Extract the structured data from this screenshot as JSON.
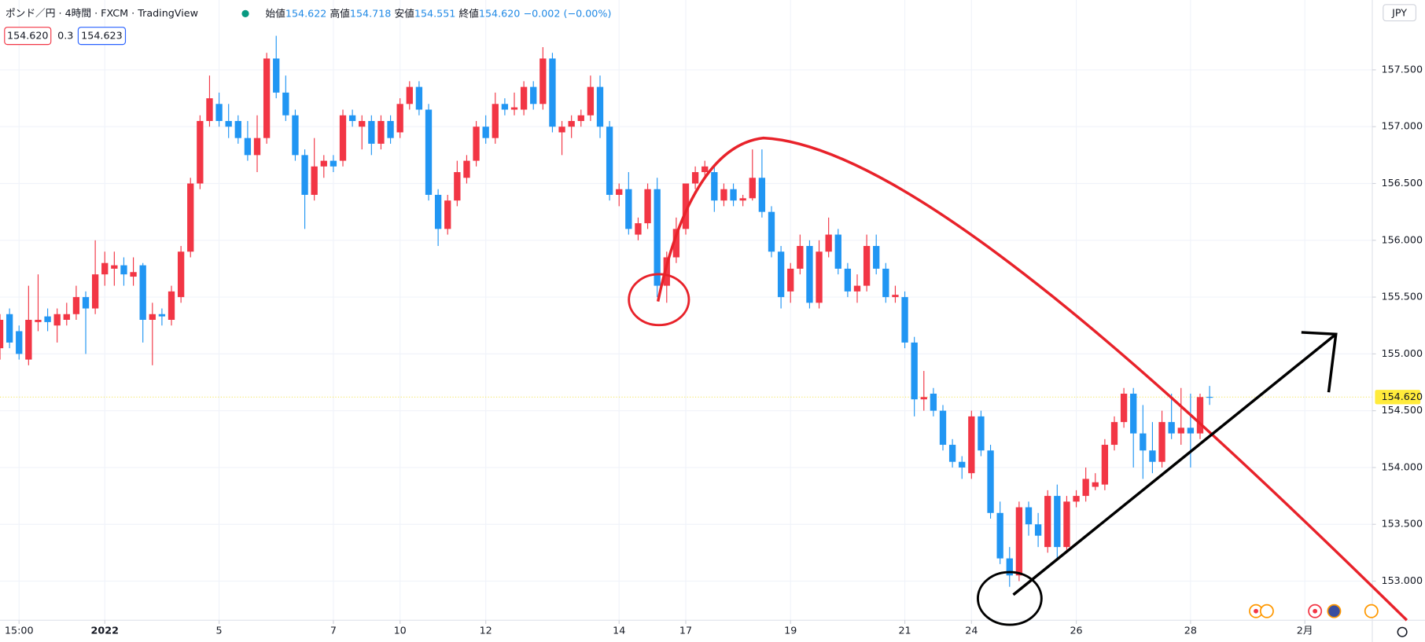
{
  "header": {
    "title": "ポンド／円 · 4時間 · FXCM · TradingView",
    "open_label": "始値",
    "open": "154.622",
    "high_label": "高値",
    "high": "154.718",
    "low_label": "安値",
    "low": "154.551",
    "close_label": "終値",
    "close": "154.620",
    "change": "−0.002 (−0.00%)",
    "sell": "154.620",
    "spread": "0.3",
    "buy": "154.623",
    "currency": "JPY"
  },
  "chart_data": {
    "type": "candlestick",
    "up_color": "#f23645",
    "down_color": "#2196f3",
    "grid": true,
    "xlim": [
      0,
      144.08
    ],
    "ylim": [
      152.656,
      158.115
    ],
    "xticks": [
      {
        "value": 2,
        "label": "15:00"
      },
      {
        "value": 11,
        "label": "2022"
      },
      {
        "value": 23,
        "label": "5"
      },
      {
        "value": 35,
        "label": "7"
      },
      {
        "value": 42,
        "label": "10"
      },
      {
        "value": 51,
        "label": "12"
      },
      {
        "value": 65,
        "label": "14"
      },
      {
        "value": 72,
        "label": "17"
      },
      {
        "value": 83,
        "label": "19"
      },
      {
        "value": 95,
        "label": "21"
      },
      {
        "value": 102,
        "label": "24"
      },
      {
        "value": 113,
        "label": "26"
      },
      {
        "value": 125,
        "label": "28"
      },
      {
        "value": 137,
        "label": "2月"
      }
    ],
    "yticks": [
      {
        "value": 153,
        "label": "153.000"
      },
      {
        "value": 153.5,
        "label": "153.500"
      },
      {
        "value": 154,
        "label": "154.000"
      },
      {
        "value": 154.5,
        "label": "154.500"
      },
      {
        "value": 155,
        "label": "155.000"
      },
      {
        "value": 155.5,
        "label": "155.500"
      },
      {
        "value": 156,
        "label": "156.000"
      },
      {
        "value": 156.5,
        "label": "156.500"
      },
      {
        "value": 157,
        "label": "157.000"
      },
      {
        "value": 157.5,
        "label": "157.500"
      }
    ],
    "last_price": {
      "value": 154.62,
      "label": "154.620"
    },
    "ohlc": [
      [
        155.05,
        155.35,
        154.95,
        155.3
      ],
      [
        155.35,
        155.4,
        155.05,
        155.1
      ],
      [
        155.2,
        155.25,
        154.95,
        155.0
      ],
      [
        154.95,
        155.6,
        154.9,
        155.3
      ],
      [
        155.28,
        155.7,
        155.2,
        155.3
      ],
      [
        155.33,
        155.4,
        155.2,
        155.28
      ],
      [
        155.25,
        155.4,
        155.1,
        155.35
      ],
      [
        155.3,
        155.45,
        155.25,
        155.35
      ],
      [
        155.35,
        155.6,
        155.3,
        155.5
      ],
      [
        155.5,
        155.55,
        155.0,
        155.4
      ],
      [
        155.4,
        156.0,
        155.35,
        155.7
      ],
      [
        155.7,
        155.9,
        155.6,
        155.8
      ],
      [
        155.75,
        155.9,
        155.6,
        155.78
      ],
      [
        155.78,
        155.85,
        155.6,
        155.7
      ],
      [
        155.68,
        155.85,
        155.6,
        155.72
      ],
      [
        155.78,
        155.8,
        155.1,
        155.3
      ],
      [
        155.3,
        155.45,
        154.9,
        155.35
      ],
      [
        155.35,
        155.4,
        155.25,
        155.33
      ],
      [
        155.3,
        155.6,
        155.25,
        155.55
      ],
      [
        155.5,
        155.95,
        155.45,
        155.9
      ],
      [
        155.9,
        156.55,
        155.85,
        156.5
      ],
      [
        156.5,
        157.1,
        156.45,
        157.05
      ],
      [
        157.05,
        157.45,
        157.0,
        157.25
      ],
      [
        157.2,
        157.3,
        157.0,
        157.05
      ],
      [
        157.05,
        157.2,
        156.9,
        157.0
      ],
      [
        157.05,
        157.1,
        156.85,
        156.9
      ],
      [
        156.9,
        157.05,
        156.7,
        156.75
      ],
      [
        156.75,
        157.1,
        156.6,
        156.9
      ],
      [
        156.9,
        157.65,
        156.85,
        157.6
      ],
      [
        157.6,
        157.8,
        157.25,
        157.3
      ],
      [
        157.3,
        157.45,
        157.05,
        157.1
      ],
      [
        157.1,
        157.15,
        156.7,
        156.75
      ],
      [
        156.75,
        156.8,
        156.1,
        156.4
      ],
      [
        156.4,
        156.9,
        156.35,
        156.65
      ],
      [
        156.65,
        156.75,
        156.55,
        156.7
      ],
      [
        156.7,
        156.75,
        156.6,
        156.65
      ],
      [
        156.7,
        157.15,
        156.65,
        157.1
      ],
      [
        157.1,
        157.15,
        157.0,
        157.05
      ],
      [
        157.0,
        157.1,
        156.8,
        157.05
      ],
      [
        157.05,
        157.1,
        156.75,
        156.85
      ],
      [
        156.85,
        157.1,
        156.8,
        157.05
      ],
      [
        157.05,
        157.1,
        156.85,
        156.9
      ],
      [
        156.95,
        157.25,
        156.9,
        157.2
      ],
      [
        157.2,
        157.4,
        157.15,
        157.35
      ],
      [
        157.35,
        157.4,
        157.1,
        157.15
      ],
      [
        157.15,
        157.2,
        156.35,
        156.4
      ],
      [
        156.4,
        156.45,
        155.95,
        156.1
      ],
      [
        156.1,
        156.4,
        156.05,
        156.35
      ],
      [
        156.35,
        156.7,
        156.3,
        156.6
      ],
      [
        156.55,
        156.75,
        156.5,
        156.7
      ],
      [
        156.7,
        157.05,
        156.65,
        157.0
      ],
      [
        157.0,
        157.1,
        156.85,
        156.9
      ],
      [
        156.9,
        157.3,
        156.85,
        157.2
      ],
      [
        157.2,
        157.25,
        157.1,
        157.15
      ],
      [
        157.15,
        157.3,
        157.1,
        157.17
      ],
      [
        157.15,
        157.4,
        157.1,
        157.35
      ],
      [
        157.35,
        157.4,
        157.15,
        157.2
      ],
      [
        157.2,
        157.7,
        157.15,
        157.6
      ],
      [
        157.6,
        157.65,
        156.95,
        157.0
      ],
      [
        156.95,
        157.05,
        156.75,
        157.0
      ],
      [
        157.0,
        157.1,
        156.9,
        157.05
      ],
      [
        157.05,
        157.15,
        157.0,
        157.1
      ],
      [
        157.1,
        157.45,
        157.05,
        157.35
      ],
      [
        157.35,
        157.45,
        156.9,
        157.0
      ],
      [
        157.0,
        157.05,
        156.35,
        156.4
      ],
      [
        156.4,
        156.5,
        156.3,
        156.45
      ],
      [
        156.45,
        156.6,
        156.05,
        156.1
      ],
      [
        156.05,
        156.2,
        156.0,
        156.15
      ],
      [
        156.15,
        156.5,
        156.1,
        156.45
      ],
      [
        156.45,
        156.55,
        155.5,
        155.6
      ],
      [
        155.6,
        155.9,
        155.45,
        155.85
      ],
      [
        155.85,
        156.2,
        155.8,
        156.1
      ],
      [
        156.1,
        156.5,
        156.05,
        156.5
      ],
      [
        156.5,
        156.65,
        156.45,
        156.6
      ],
      [
        156.6,
        156.7,
        156.55,
        156.65
      ],
      [
        156.6,
        156.65,
        156.25,
        156.35
      ],
      [
        156.35,
        156.5,
        156.3,
        156.45
      ],
      [
        156.45,
        156.5,
        156.3,
        156.35
      ],
      [
        156.35,
        156.4,
        156.3,
        156.37
      ],
      [
        156.37,
        156.8,
        156.35,
        156.55
      ],
      [
        156.55,
        156.8,
        156.2,
        156.25
      ],
      [
        156.25,
        156.3,
        155.85,
        155.9
      ],
      [
        155.9,
        155.95,
        155.4,
        155.5
      ],
      [
        155.55,
        155.8,
        155.45,
        155.75
      ],
      [
        155.75,
        156.05,
        155.7,
        155.95
      ],
      [
        155.95,
        156.0,
        155.4,
        155.45
      ],
      [
        155.45,
        156.0,
        155.4,
        155.9
      ],
      [
        155.9,
        156.2,
        155.85,
        156.05
      ],
      [
        156.05,
        156.1,
        155.7,
        155.75
      ],
      [
        155.75,
        155.8,
        155.5,
        155.55
      ],
      [
        155.55,
        155.7,
        155.45,
        155.6
      ],
      [
        155.6,
        156.05,
        155.55,
        155.95
      ],
      [
        155.95,
        156.05,
        155.7,
        155.75
      ],
      [
        155.75,
        155.8,
        155.45,
        155.5
      ],
      [
        155.5,
        155.6,
        155.45,
        155.52
      ],
      [
        155.5,
        155.55,
        155.05,
        155.1
      ],
      [
        155.1,
        155.15,
        154.45,
        154.6
      ],
      [
        154.6,
        154.85,
        154.5,
        154.62
      ],
      [
        154.65,
        154.7,
        154.45,
        154.5
      ],
      [
        154.5,
        154.55,
        154.15,
        154.2
      ],
      [
        154.2,
        154.25,
        154.0,
        154.05
      ],
      [
        154.05,
        154.1,
        153.9,
        154.0
      ],
      [
        153.95,
        154.5,
        153.9,
        154.45
      ],
      [
        154.45,
        154.5,
        154.1,
        154.15
      ],
      [
        154.15,
        154.2,
        153.55,
        153.6
      ],
      [
        153.6,
        153.7,
        153.15,
        153.2
      ],
      [
        153.2,
        153.3,
        152.95,
        153.05
      ],
      [
        153.05,
        153.7,
        153.0,
        153.65
      ],
      [
        153.65,
        153.7,
        153.4,
        153.5
      ],
      [
        153.5,
        153.6,
        153.3,
        153.4
      ],
      [
        153.3,
        153.8,
        153.25,
        153.75
      ],
      [
        153.75,
        153.85,
        153.2,
        153.3
      ],
      [
        153.3,
        153.75,
        153.25,
        153.7
      ],
      [
        153.7,
        153.8,
        153.65,
        153.75
      ],
      [
        153.75,
        154.0,
        153.7,
        153.9
      ],
      [
        153.83,
        153.95,
        153.8,
        153.87
      ],
      [
        153.85,
        154.25,
        153.8,
        154.2
      ],
      [
        154.2,
        154.45,
        154.15,
        154.4
      ],
      [
        154.4,
        154.7,
        154.35,
        154.65
      ],
      [
        154.65,
        154.7,
        154.0,
        154.3
      ],
      [
        154.3,
        154.55,
        153.9,
        154.15
      ],
      [
        154.15,
        154.4,
        153.95,
        154.05
      ],
      [
        154.05,
        154.5,
        154.0,
        154.4
      ],
      [
        154.4,
        154.65,
        154.25,
        154.3
      ],
      [
        154.3,
        154.7,
        154.2,
        154.35
      ],
      [
        154.35,
        154.65,
        154.0,
        154.3
      ],
      [
        154.3,
        154.65,
        154.25,
        154.62
      ],
      [
        154.622,
        154.718,
        154.551,
        154.62
      ]
    ]
  }
}
